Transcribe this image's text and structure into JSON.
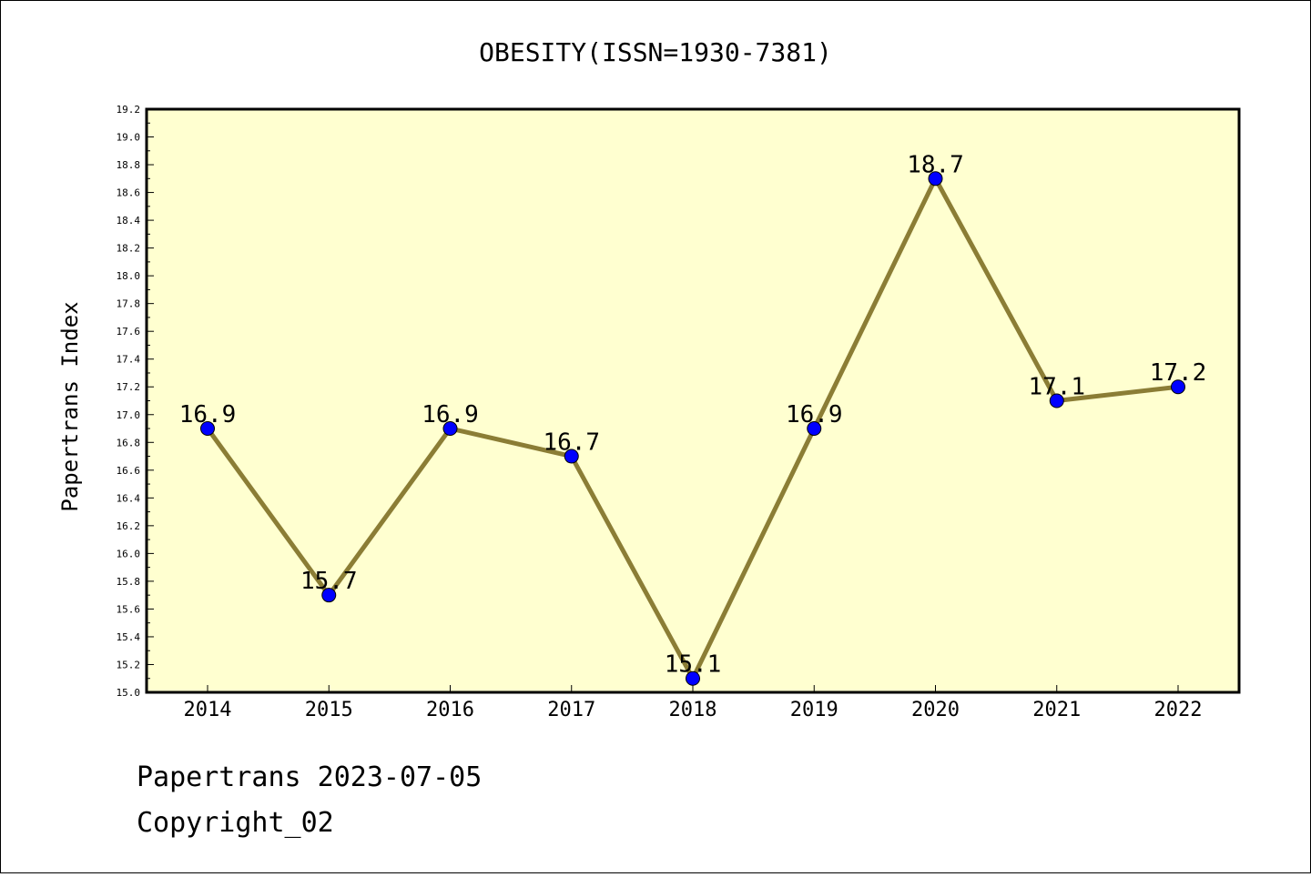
{
  "chart_data": {
    "type": "line",
    "title": "OBESITY(ISSN=1930-7381)",
    "xlabel": "",
    "ylabel": "Papertrans Index",
    "categories": [
      "2014",
      "2015",
      "2016",
      "2017",
      "2018",
      "2019",
      "2020",
      "2021",
      "2022"
    ],
    "series": [
      {
        "values": [
          16.9,
          15.7,
          16.9,
          16.7,
          15.1,
          16.9,
          18.7,
          17.1,
          17.2
        ]
      }
    ],
    "data_labels": [
      "16.9",
      "15.7",
      "16.9",
      "16.7",
      "15.1",
      "16.9",
      "18.7",
      "17.1",
      "17.2"
    ],
    "ylim": [
      15.0,
      19.2
    ],
    "yticks": [
      "15.0",
      "15.2",
      "15.4",
      "15.6",
      "15.8",
      "16.0",
      "16.2",
      "16.4",
      "16.6",
      "16.8",
      "17.0",
      "17.2",
      "17.4",
      "17.6",
      "17.8",
      "18.0",
      "18.2",
      "18.4",
      "18.6",
      "18.8",
      "19.0",
      "19.2"
    ],
    "grid": false,
    "colors": {
      "plot_background": "#FFFFD0",
      "line": "#8B7D35",
      "marker": "#0000FF"
    }
  },
  "footer": {
    "line1": "Papertrans 2023-07-05",
    "line2": "Copyright_02"
  }
}
